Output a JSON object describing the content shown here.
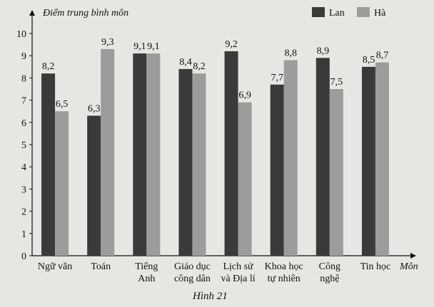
{
  "chart_data": {
    "type": "bar",
    "title": "",
    "caption": "Hình 21",
    "ylabel": "Điểm trung bình môn",
    "xlabel": "Môn",
    "ylim": [
      0,
      10
    ],
    "yticks": [
      0,
      1,
      2,
      3,
      4,
      5,
      6,
      7,
      8,
      9,
      10
    ],
    "grid": false,
    "legend_position": "top-right",
    "categories": [
      [
        "Ngữ văn"
      ],
      [
        "Toán"
      ],
      [
        "Tiếng",
        "Anh"
      ],
      [
        "Giáo dục",
        "công dân"
      ],
      [
        "Lịch sử",
        "và Địa lí"
      ],
      [
        "Khoa học",
        "tự nhiên"
      ],
      [
        "Công",
        "nghệ"
      ],
      [
        "Tin học"
      ]
    ],
    "series": [
      {
        "name": "Lan",
        "color": "#3a3a3a",
        "values": [
          8.2,
          6.3,
          9.1,
          8.4,
          9.2,
          7.7,
          8.9,
          8.5
        ],
        "labels": [
          "8,2",
          "6,3",
          "9,1",
          "8,4",
          "9,2",
          "7,7",
          "8,9",
          "8,5"
        ]
      },
      {
        "name": "Hà",
        "color": "#9c9c9c",
        "values": [
          6.5,
          9.3,
          9.1,
          8.2,
          6.9,
          8.8,
          7.5,
          8.7
        ],
        "labels": [
          "6,5",
          "9,3",
          "9,1",
          "8,2",
          "6,9",
          "8,8",
          "7,5",
          "8,7"
        ]
      }
    ]
  }
}
